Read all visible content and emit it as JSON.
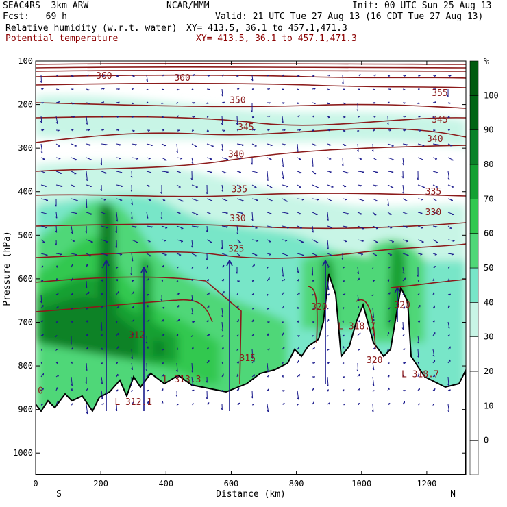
{
  "header": {
    "model": "SEAC4RS  3km ARW",
    "org": "NCAR/MMM",
    "init": "Init: 00 UTC Sun 25 Aug 13",
    "fcst": "Fcst:   69 h",
    "valid": "Valid: 21 UTC Tue 27 Aug 13 (16 CDT Tue 27 Aug 13)",
    "field1": "Relative humidity (w.r.t. water)",
    "xy1": "XY= 413.5, 36.1 to 457.1,471.3",
    "field2": "Potential temperature",
    "xy2": "XY= 413.5, 36.1 to 457.1,471.3"
  },
  "chart_data": {
    "type": "heatmap",
    "xlabel": "Distance (km)",
    "ylabel": "Pressure (hPa)",
    "xlim": [
      0,
      1320
    ],
    "ylim": [
      1050,
      100
    ],
    "xticks": [
      0,
      200,
      400,
      600,
      800,
      1000,
      1200
    ],
    "yticks": [
      100,
      200,
      300,
      400,
      500,
      600,
      700,
      800,
      900,
      1000
    ],
    "x_end_labels": {
      "left": "S",
      "right": "N"
    },
    "colorbar": {
      "unit": "%",
      "levels": [
        0,
        10,
        20,
        30,
        40,
        50,
        60,
        70,
        80,
        90,
        100
      ],
      "colors": [
        "#ffffff",
        "#ffffff",
        "#ffffff",
        "#ffffff",
        "#c8f5e6",
        "#78e6c8",
        "#50d778",
        "#32c850",
        "#14a032",
        "#0a8228",
        "#006414",
        "#005a0f"
      ]
    },
    "theta_labels": [
      {
        "text": "360",
        "x": 210,
        "p": 133
      },
      {
        "text": "360",
        "x": 450,
        "p": 138
      },
      {
        "text": "355",
        "x": 1240,
        "p": 172
      },
      {
        "text": "350",
        "x": 620,
        "p": 189
      },
      {
        "text": "345",
        "x": 645,
        "p": 251
      },
      {
        "text": "345",
        "x": 1240,
        "p": 234
      },
      {
        "text": "340",
        "x": 1225,
        "p": 278
      },
      {
        "text": "340",
        "x": 615,
        "p": 313
      },
      {
        "text": "335",
        "x": 625,
        "p": 393
      },
      {
        "text": "335",
        "x": 1220,
        "p": 399
      },
      {
        "text": "330",
        "x": 620,
        "p": 460
      },
      {
        "text": "330",
        "x": 1220,
        "p": 446
      },
      {
        "text": "325",
        "x": 615,
        "p": 530
      },
      {
        "text": "320",
        "x": 870,
        "p": 663
      },
      {
        "text": "320",
        "x": 1125,
        "p": 659
      },
      {
        "text": "315",
        "x": 650,
        "p": 781
      },
      {
        "text": "L 313.3",
        "x": 450,
        "p": 830
      },
      {
        "text": "L 312.1",
        "x": 300,
        "p": 882
      },
      {
        "text": "312",
        "x": 310,
        "p": 728
      },
      {
        "text": "L 318.7",
        "x": 1180,
        "p": 818
      },
      {
        "text": "L 318.7",
        "x": 985,
        "p": 708
      },
      {
        "text": "320",
        "x": 1040,
        "p": 786
      },
      {
        "text": "0",
        "x": 15,
        "p": 856
      }
    ]
  }
}
